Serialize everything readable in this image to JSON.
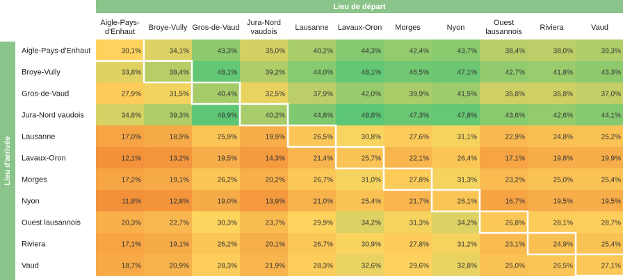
{
  "chart_data": {
    "type": "heatmap",
    "xlabel": "Lieu de départ",
    "ylabel": "Lieu d'arrivée",
    "columns": [
      "Aigle-Pays-d'Enhaut",
      "Broye-Vully",
      "Gros-de-Vaud",
      "Jura-Nord vaudois",
      "Lausanne",
      "Lavaux-Oron",
      "Morges",
      "Nyon",
      "Ouest lausannois",
      "Riviera",
      "Vaud"
    ],
    "rows": [
      "Aigle-Pays-d'Enhaut",
      "Broye-Vully",
      "Gros-de-Vaud",
      "Jura-Nord vaudois",
      "Lausanne",
      "Lavaux-Oron",
      "Morges",
      "Nyon",
      "Ouest lausannois",
      "Riviera",
      "Vaud"
    ],
    "values": [
      [
        30.1,
        34.1,
        43.3,
        35.0,
        40.2,
        44.3,
        42.4,
        43.7,
        38.4,
        38.0,
        39.3
      ],
      [
        33.8,
        38.4,
        48.1,
        39.2,
        44.0,
        48.1,
        46.5,
        47.1,
        42.7,
        41.8,
        43.3
      ],
      [
        27.9,
        31.5,
        40.4,
        32.5,
        37.9,
        42.0,
        39.9,
        41.5,
        35.8,
        35.8,
        37.0
      ],
      [
        34.8,
        39.3,
        48.9,
        40.2,
        44.8,
        48.8,
        47.3,
        47.8,
        43.6,
        42.6,
        44.1
      ],
      [
        17.0,
        18.9,
        25.9,
        19.9,
        26.5,
        30.8,
        27.6,
        31.1,
        22.9,
        24.8,
        25.2
      ],
      [
        12.1,
        13.2,
        19.5,
        14.3,
        21.4,
        25.7,
        22.1,
        26.4,
        17.1,
        19.8,
        19.9
      ],
      [
        17.2,
        19.1,
        26.2,
        20.2,
        26.7,
        31.0,
        27.8,
        31.3,
        23.2,
        25.0,
        25.4
      ],
      [
        11.8,
        12.8,
        19.0,
        13.9,
        21.0,
        25.4,
        21.7,
        26.1,
        16.7,
        19.5,
        19.5
      ],
      [
        20.3,
        22.7,
        30.3,
        23.7,
        29.9,
        34.2,
        31.3,
        34.2,
        26.8,
        28.1,
        28.7
      ],
      [
        17.1,
        19.1,
        26.2,
        20.1,
        26.7,
        30.9,
        27.8,
        31.2,
        23.1,
        24.9,
        25.4
      ],
      [
        18.7,
        20.9,
        28.3,
        21.9,
        28.3,
        32.6,
        29.6,
        32.8,
        25.0,
        26.5,
        27.1
      ]
    ],
    "value_suffix": "%",
    "decimal_separator": ",",
    "color_scale": {
      "min": 11.8,
      "max": 48.9,
      "low": "#f3913a",
      "mid": "#fdd45e",
      "high": "#5cc675"
    },
    "highlight": "diagonal-staircase",
    "highlight_color": "#ffffff"
  },
  "labels": {
    "xlabel": "Lieu de départ",
    "ylabel": "Lieu d'arrivée"
  }
}
